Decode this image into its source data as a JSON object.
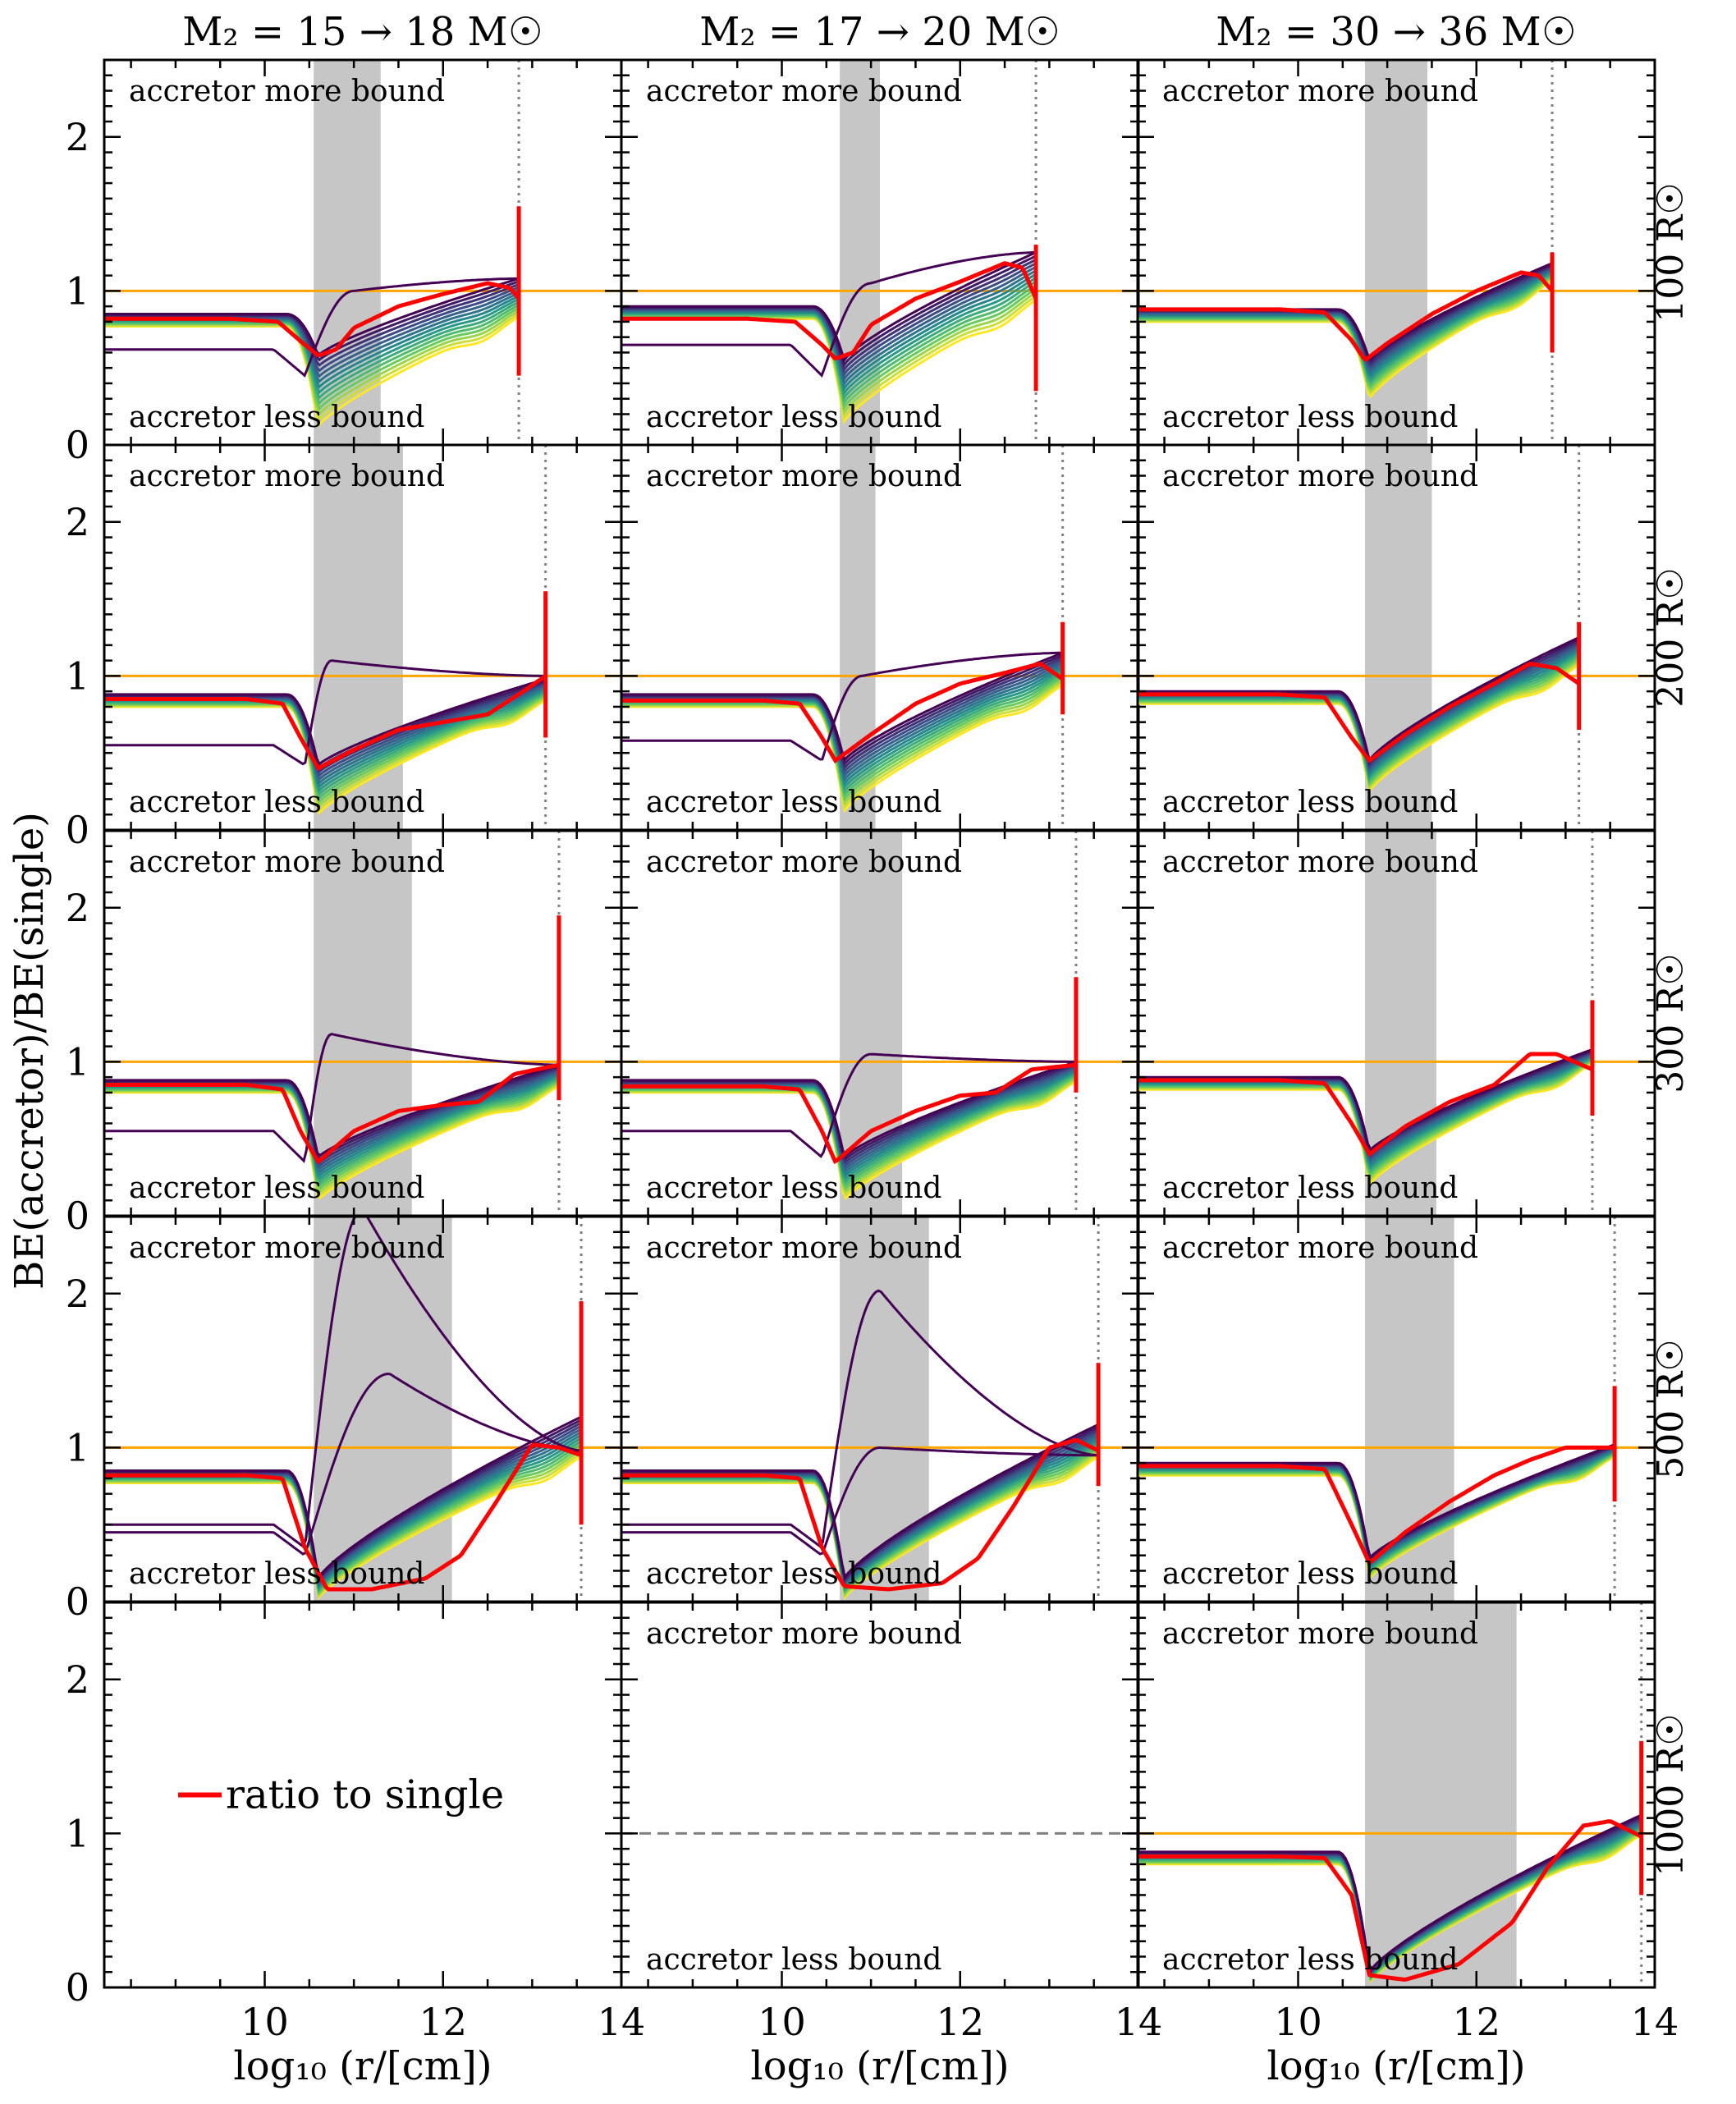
{
  "chart_data": {
    "type": "line",
    "ylabel": "BE(accretor)/BE(single)",
    "xlabel": "log₁₀ (r/[cm])",
    "xlim": [
      8.2,
      14
    ],
    "ylim": [
      0,
      2.5
    ],
    "xticks": [
      10,
      12,
      14
    ],
    "xtick_labels": [
      "10",
      "12",
      "14"
    ],
    "yticks": [
      0,
      1,
      2
    ],
    "ytick_labels": [
      "0",
      "1",
      "2"
    ],
    "columns": [
      "M₂ = 15 → 18 M☉",
      "M₂ = 17 → 20 M☉",
      "M₂ = 30 → 36 M☉"
    ],
    "rows": [
      "100 R☉",
      "200 R☉",
      "300 R☉",
      "500 R☉",
      "1000 R☉"
    ],
    "top_annotation": "accretor more bound",
    "bottom_annotation": "accretor less bound",
    "legend_label": "ratio to single",
    "colors": {
      "ratio": "#ff0000",
      "reference": "#ffa500",
      "shade": "#c6c6c6",
      "surface": "#808080",
      "dashed": "#808080"
    },
    "colormap": [
      "#440154",
      "#3b528b",
      "#21918c",
      "#5ec962",
      "#fde725"
    ],
    "panels": [
      {
        "row": 0,
        "col": 0,
        "empty": false,
        "shade": [
          10.55,
          11.3
        ],
        "surface": 12.85,
        "red": {
          "x": [
            8.2,
            9.6,
            10.15,
            10.45,
            10.6,
            10.8,
            11.0,
            11.5,
            12.0,
            12.5,
            12.75,
            12.85
          ],
          "y": [
            0.82,
            0.82,
            0.8,
            0.65,
            0.58,
            0.62,
            0.76,
            0.9,
            0.98,
            1.05,
            1.02,
            0.95
          ]
        },
        "red_bar": [
          0.45,
          1.55
        ],
        "base": [
          0.85,
          0.58
        ],
        "dip": [
          0.58,
          0.12
        ],
        "late": [
          1.08,
          0.84
        ],
        "purples": [
          {
            "b": 0.62,
            "d": 0.45,
            "peak": 1.0,
            "px": 11.0,
            "end": 1.08
          }
        ]
      },
      {
        "row": 0,
        "col": 1,
        "empty": false,
        "shade": [
          10.65,
          11.1
        ],
        "surface": 12.85,
        "red": {
          "x": [
            8.2,
            9.6,
            10.15,
            10.45,
            10.6,
            10.8,
            11.0,
            11.5,
            12.0,
            12.5,
            12.7,
            12.85
          ],
          "y": [
            0.82,
            0.82,
            0.8,
            0.65,
            0.56,
            0.6,
            0.78,
            0.95,
            1.06,
            1.18,
            1.15,
            0.95
          ]
        },
        "red_bar": [
          0.35,
          1.3
        ],
        "base": [
          0.9,
          0.65
        ],
        "dip": [
          0.55,
          0.15
        ],
        "late": [
          1.25,
          0.95
        ],
        "purples": [
          {
            "b": 0.65,
            "d": 0.45,
            "peak": 1.05,
            "px": 11.0,
            "end": 1.25
          }
        ]
      },
      {
        "row": 0,
        "col": 2,
        "empty": false,
        "shade": [
          10.75,
          11.45
        ],
        "surface": 12.85,
        "red": {
          "x": [
            8.2,
            9.8,
            10.3,
            10.6,
            10.75,
            11.0,
            11.5,
            12.0,
            12.5,
            12.7,
            12.85
          ],
          "y": [
            0.88,
            0.88,
            0.86,
            0.68,
            0.55,
            0.66,
            0.85,
            1.0,
            1.12,
            1.1,
            1.0
          ]
        },
        "red_bar": [
          0.6,
          1.25
        ],
        "base": [
          0.88,
          0.82
        ],
        "dip": [
          0.55,
          0.3
        ],
        "late": [
          1.18,
          1.08
        ],
        "purples": []
      },
      {
        "row": 1,
        "col": 0,
        "empty": false,
        "shade": [
          10.55,
          11.55
        ],
        "surface": 13.15,
        "red": {
          "x": [
            8.2,
            9.8,
            10.2,
            10.4,
            10.6,
            11.0,
            11.5,
            12.0,
            12.5,
            12.9,
            13.15
          ],
          "y": [
            0.85,
            0.85,
            0.82,
            0.6,
            0.4,
            0.52,
            0.65,
            0.7,
            0.75,
            0.9,
            1.0
          ]
        },
        "red_bar": [
          0.6,
          1.55
        ],
        "base": [
          0.88,
          0.55
        ],
        "dip": [
          0.42,
          0.1
        ],
        "late": [
          0.98,
          0.85
        ],
        "purples": [
          {
            "b": 0.55,
            "d": 0.42,
            "peak": 1.1,
            "px": 10.75,
            "end": 1.0
          }
        ]
      },
      {
        "row": 1,
        "col": 1,
        "empty": false,
        "shade": [
          10.65,
          11.05
        ],
        "surface": 13.15,
        "red": {
          "x": [
            8.2,
            9.8,
            10.2,
            10.45,
            10.6,
            11.0,
            11.5,
            12.0,
            12.5,
            12.9,
            13.15
          ],
          "y": [
            0.84,
            0.84,
            0.82,
            0.6,
            0.45,
            0.62,
            0.82,
            0.95,
            1.02,
            1.08,
            0.98
          ]
        },
        "red_bar": [
          0.75,
          1.35
        ],
        "base": [
          0.88,
          0.55
        ],
        "dip": [
          0.45,
          0.12
        ],
        "late": [
          1.15,
          0.95
        ],
        "purples": [
          {
            "b": 0.58,
            "d": 0.45,
            "peak": 1.0,
            "px": 10.9,
            "end": 1.15
          }
        ]
      },
      {
        "row": 1,
        "col": 2,
        "empty": false,
        "shade": [
          10.75,
          11.5
        ],
        "surface": 13.15,
        "red": {
          "x": [
            8.2,
            9.8,
            10.3,
            10.6,
            10.8,
            11.2,
            11.7,
            12.2,
            12.6,
            12.9,
            13.15
          ],
          "y": [
            0.88,
            0.88,
            0.86,
            0.6,
            0.45,
            0.62,
            0.8,
            0.95,
            1.08,
            1.05,
            0.95
          ]
        },
        "red_bar": [
          0.65,
          1.35
        ],
        "base": [
          0.9,
          0.82
        ],
        "dip": [
          0.45,
          0.25
        ],
        "late": [
          1.25,
          1.08
        ],
        "purples": []
      },
      {
        "row": 2,
        "col": 0,
        "empty": false,
        "shade": [
          10.55,
          11.65
        ],
        "surface": 13.3,
        "red": {
          "x": [
            8.2,
            9.8,
            10.2,
            10.4,
            10.6,
            11.0,
            11.5,
            12.0,
            12.4,
            12.8,
            13.3
          ],
          "y": [
            0.85,
            0.85,
            0.82,
            0.55,
            0.35,
            0.55,
            0.68,
            0.72,
            0.74,
            0.92,
            0.98
          ]
        },
        "red_bar": [
          0.75,
          1.95
        ],
        "base": [
          0.88,
          0.55
        ],
        "dip": [
          0.38,
          0.1
        ],
        "late": [
          0.98,
          0.85
        ],
        "purples": [
          {
            "b": 0.55,
            "d": 0.35,
            "peak": 1.18,
            "px": 10.75,
            "end": 0.98
          }
        ]
      },
      {
        "row": 2,
        "col": 1,
        "empty": false,
        "shade": [
          10.65,
          11.35
        ],
        "surface": 13.3,
        "red": {
          "x": [
            8.2,
            9.8,
            10.2,
            10.45,
            10.6,
            11.0,
            11.5,
            12.0,
            12.4,
            12.8,
            13.3
          ],
          "y": [
            0.84,
            0.84,
            0.82,
            0.55,
            0.35,
            0.55,
            0.68,
            0.78,
            0.8,
            0.95,
            0.98
          ]
        },
        "red_bar": [
          0.8,
          1.55
        ],
        "base": [
          0.88,
          0.55
        ],
        "dip": [
          0.38,
          0.1
        ],
        "late": [
          1.0,
          0.88
        ],
        "purples": [
          {
            "b": 0.55,
            "d": 0.38,
            "peak": 1.05,
            "px": 11.0,
            "end": 1.0
          }
        ]
      },
      {
        "row": 2,
        "col": 2,
        "empty": false,
        "shade": [
          10.75,
          11.55
        ],
        "surface": 13.3,
        "red": {
          "x": [
            8.2,
            9.8,
            10.3,
            10.6,
            10.8,
            11.2,
            11.7,
            12.2,
            12.6,
            12.9,
            13.3
          ],
          "y": [
            0.88,
            0.88,
            0.86,
            0.6,
            0.4,
            0.58,
            0.74,
            0.85,
            1.05,
            1.05,
            0.95
          ]
        },
        "red_bar": [
          0.65,
          1.4
        ],
        "base": [
          0.9,
          0.82
        ],
        "dip": [
          0.42,
          0.2
        ],
        "late": [
          1.08,
          1.0
        ],
        "purples": []
      },
      {
        "row": 3,
        "col": 0,
        "empty": false,
        "shade": [
          10.55,
          12.1
        ],
        "surface": 13.55,
        "red": {
          "x": [
            8.2,
            9.8,
            10.2,
            10.45,
            10.7,
            11.2,
            11.8,
            12.2,
            12.6,
            13.0,
            13.3,
            13.55
          ],
          "y": [
            0.82,
            0.82,
            0.8,
            0.35,
            0.08,
            0.08,
            0.15,
            0.3,
            0.65,
            1.02,
            1.0,
            0.95
          ]
        },
        "red_bar": [
          0.5,
          1.95
        ],
        "base": [
          0.85,
          0.5
        ],
        "dip": [
          0.15,
          0.02
        ],
        "late": [
          1.2,
          0.95
        ],
        "purples": [
          {
            "b": 0.5,
            "d": 0.35,
            "peak": 2.55,
            "px": 11.1,
            "end": 0.98
          },
          {
            "b": 0.45,
            "d": 0.3,
            "peak": 1.48,
            "px": 11.4,
            "end": 0.98
          }
        ]
      },
      {
        "row": 3,
        "col": 1,
        "empty": false,
        "shade": [
          10.65,
          11.65
        ],
        "surface": 13.55,
        "red": {
          "x": [
            8.2,
            9.8,
            10.2,
            10.45,
            10.7,
            11.2,
            11.8,
            12.2,
            12.6,
            13.0,
            13.3,
            13.55
          ],
          "y": [
            0.82,
            0.82,
            0.8,
            0.35,
            0.1,
            0.08,
            0.12,
            0.28,
            0.62,
            1.0,
            1.05,
            0.98
          ]
        },
        "red_bar": [
          0.75,
          1.55
        ],
        "base": [
          0.85,
          0.5
        ],
        "dip": [
          0.15,
          0.02
        ],
        "late": [
          1.15,
          0.95
        ],
        "purples": [
          {
            "b": 0.5,
            "d": 0.35,
            "peak": 2.02,
            "px": 11.1,
            "end": 0.95
          },
          {
            "b": 0.45,
            "d": 0.3,
            "peak": 1.0,
            "px": 11.1,
            "end": 0.95
          }
        ]
      },
      {
        "row": 3,
        "col": 2,
        "empty": false,
        "shade": [
          10.75,
          11.75
        ],
        "surface": 13.55,
        "red": {
          "x": [
            8.2,
            9.8,
            10.3,
            10.6,
            10.8,
            11.2,
            11.7,
            12.2,
            12.6,
            13.0,
            13.55
          ],
          "y": [
            0.88,
            0.88,
            0.86,
            0.5,
            0.25,
            0.45,
            0.65,
            0.82,
            0.92,
            1.0,
            1.0
          ]
        },
        "red_bar": [
          0.65,
          1.4
        ],
        "base": [
          0.9,
          0.82
        ],
        "dip": [
          0.28,
          0.15
        ],
        "late": [
          1.02,
          0.95
        ],
        "purples": []
      },
      {
        "row": 4,
        "col": 0,
        "empty": true,
        "legend": true
      },
      {
        "row": 4,
        "col": 1,
        "empty": true,
        "dashed_y": 1.0
      },
      {
        "row": 4,
        "col": 2,
        "empty": false,
        "shade": [
          10.75,
          12.45
        ],
        "surface": 13.85,
        "red": {
          "x": [
            8.2,
            9.8,
            10.3,
            10.6,
            10.8,
            11.2,
            11.8,
            12.4,
            12.8,
            13.2,
            13.5,
            13.85
          ],
          "y": [
            0.85,
            0.85,
            0.84,
            0.6,
            0.08,
            0.05,
            0.15,
            0.42,
            0.78,
            1.05,
            1.08,
            0.98
          ]
        },
        "red_bar": [
          0.6,
          1.6
        ],
        "base": [
          0.88,
          0.78
        ],
        "dip": [
          0.1,
          0.03
        ],
        "late": [
          1.12,
          1.0
        ],
        "purples": []
      }
    ]
  }
}
